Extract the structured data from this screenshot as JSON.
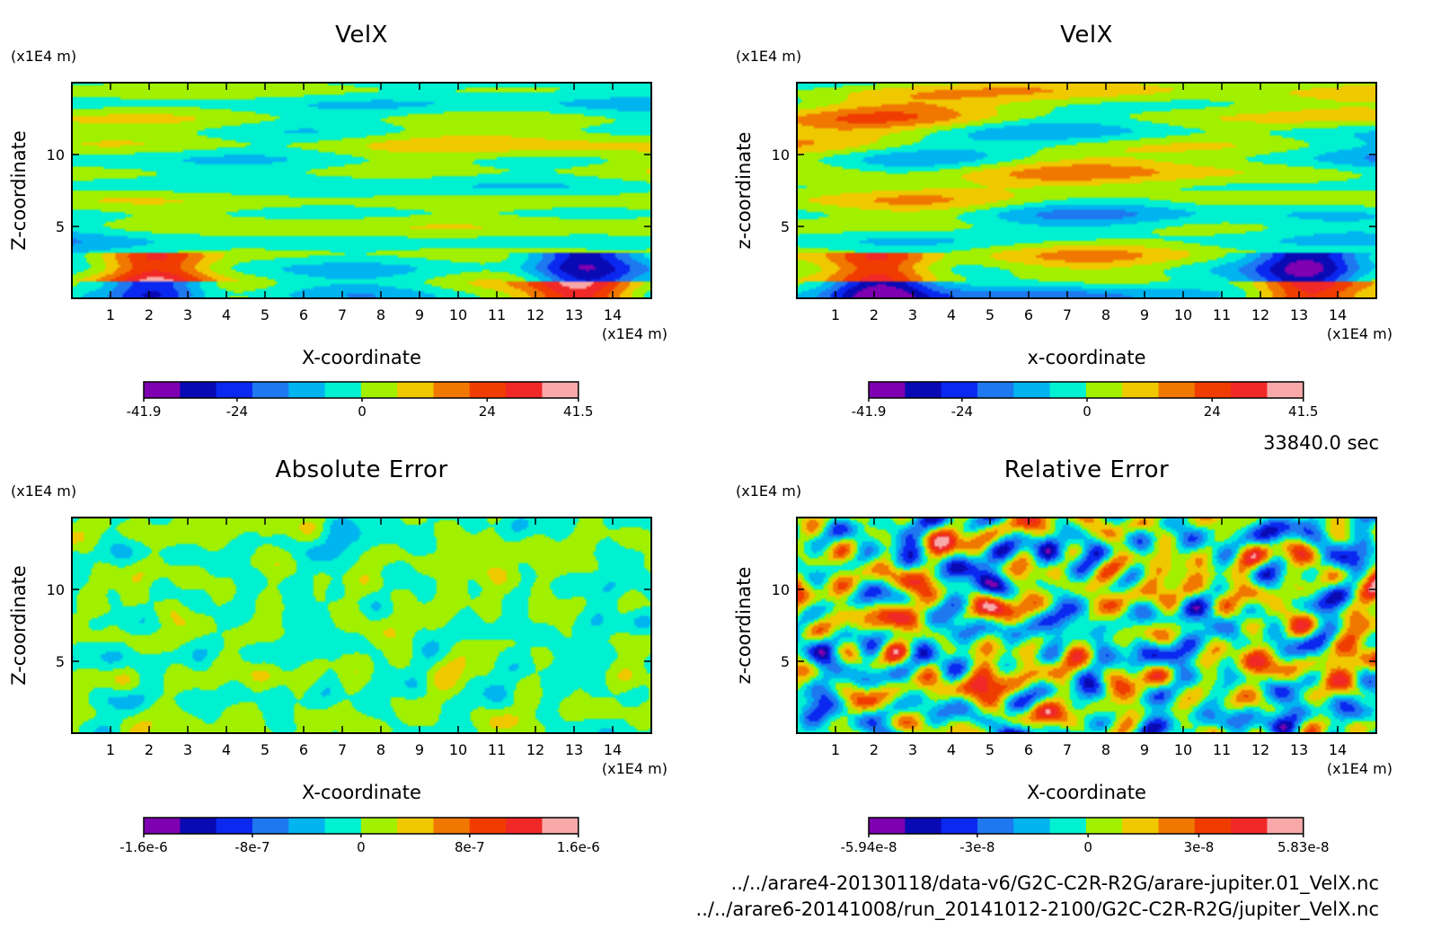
{
  "time_label": "33840.0 sec",
  "file_paths": [
    "../../arare4-20130118/data-v6/G2C-C2R-R2G/arare-jupiter.01_VelX.nc",
    "../../arare6-20141008/run_20141012-2100/G2C-C2R-R2G/jupiter_VelX.nc"
  ],
  "colors": {
    "levels": [
      "#7f00b0",
      "#0a0ab4",
      "#0a28f0",
      "#1e78f0",
      "#00b4f0",
      "#00f0d2",
      "#a0f000",
      "#f0c800",
      "#f07800",
      "#f03c00",
      "#f02828",
      "#f8a8a8"
    ]
  },
  "chart_data": [
    {
      "type": "heatmap",
      "title": "VelX",
      "xlabel": "X-coordinate",
      "ylabel": "Z-coordinate",
      "x_unit": "(x1E4 m)",
      "y_unit": "(x1E4 m)",
      "xlim": [
        0,
        15
      ],
      "ylim": [
        0,
        15
      ],
      "x_ticks": [
        "1",
        "2",
        "3",
        "4",
        "5",
        "6",
        "7",
        "8",
        "9",
        "10",
        "11",
        "12",
        "13",
        "14"
      ],
      "y_ticks": [
        "5",
        "10"
      ],
      "colorbar": {
        "min": -41.9,
        "max": 41.5,
        "tick_labels": [
          "-41.9",
          "-24",
          "0",
          "24",
          "41.5"
        ]
      },
      "field_style": "smooth-layers"
    },
    {
      "type": "heatmap",
      "title": "VelX",
      "xlabel": "x-coordinate",
      "ylabel": "z-coordinate",
      "x_unit": "(x1E4 m)",
      "y_unit": "(x1E4 m)",
      "xlim": [
        0,
        15
      ],
      "ylim": [
        0,
        15
      ],
      "x_ticks": [
        "1",
        "2",
        "3",
        "4",
        "5",
        "6",
        "7",
        "8",
        "9",
        "10",
        "11",
        "12",
        "13",
        "14"
      ],
      "y_ticks": [
        "5",
        "10"
      ],
      "colorbar": {
        "min": -41.9,
        "max": 41.5,
        "tick_labels": [
          "-41.9",
          "-24",
          "0",
          "24",
          "41.5"
        ]
      },
      "field_style": "smooth-layers"
    },
    {
      "type": "heatmap",
      "title": "Absolute Error",
      "xlabel": "X-coordinate",
      "ylabel": "Z-coordinate",
      "x_unit": "(x1E4 m)",
      "y_unit": "(x1E4 m)",
      "xlim": [
        0,
        15
      ],
      "ylim": [
        0,
        15
      ],
      "x_ticks": [
        "1",
        "2",
        "3",
        "4",
        "5",
        "6",
        "7",
        "8",
        "9",
        "10",
        "11",
        "12",
        "13",
        "14"
      ],
      "y_ticks": [
        "5",
        "10"
      ],
      "colorbar": {
        "min": -1.6e-06,
        "max": 1.6e-06,
        "tick_labels": [
          "-1.6e-6",
          "-8e-7",
          "0",
          "8e-7",
          "1.6e-6"
        ]
      },
      "field_style": "low-amplitude-noise"
    },
    {
      "type": "heatmap",
      "title": "Relative Error",
      "xlabel": "X-coordinate",
      "ylabel": "z-coordinate",
      "x_unit": "(x1E4 m)",
      "y_unit": "(x1E4 m)",
      "xlim": [
        0,
        15
      ],
      "ylim": [
        0,
        15
      ],
      "x_ticks": [
        "1",
        "2",
        "3",
        "4",
        "5",
        "6",
        "7",
        "8",
        "9",
        "10",
        "11",
        "12",
        "13",
        "14"
      ],
      "y_ticks": [
        "5",
        "10"
      ],
      "colorbar": {
        "min": -5.94e-08,
        "max": 5.83e-08,
        "tick_labels": [
          "-5.94e-8",
          "-3e-8",
          "0",
          "3e-8",
          "5.83e-8"
        ]
      },
      "field_style": "full-range-noise"
    }
  ]
}
